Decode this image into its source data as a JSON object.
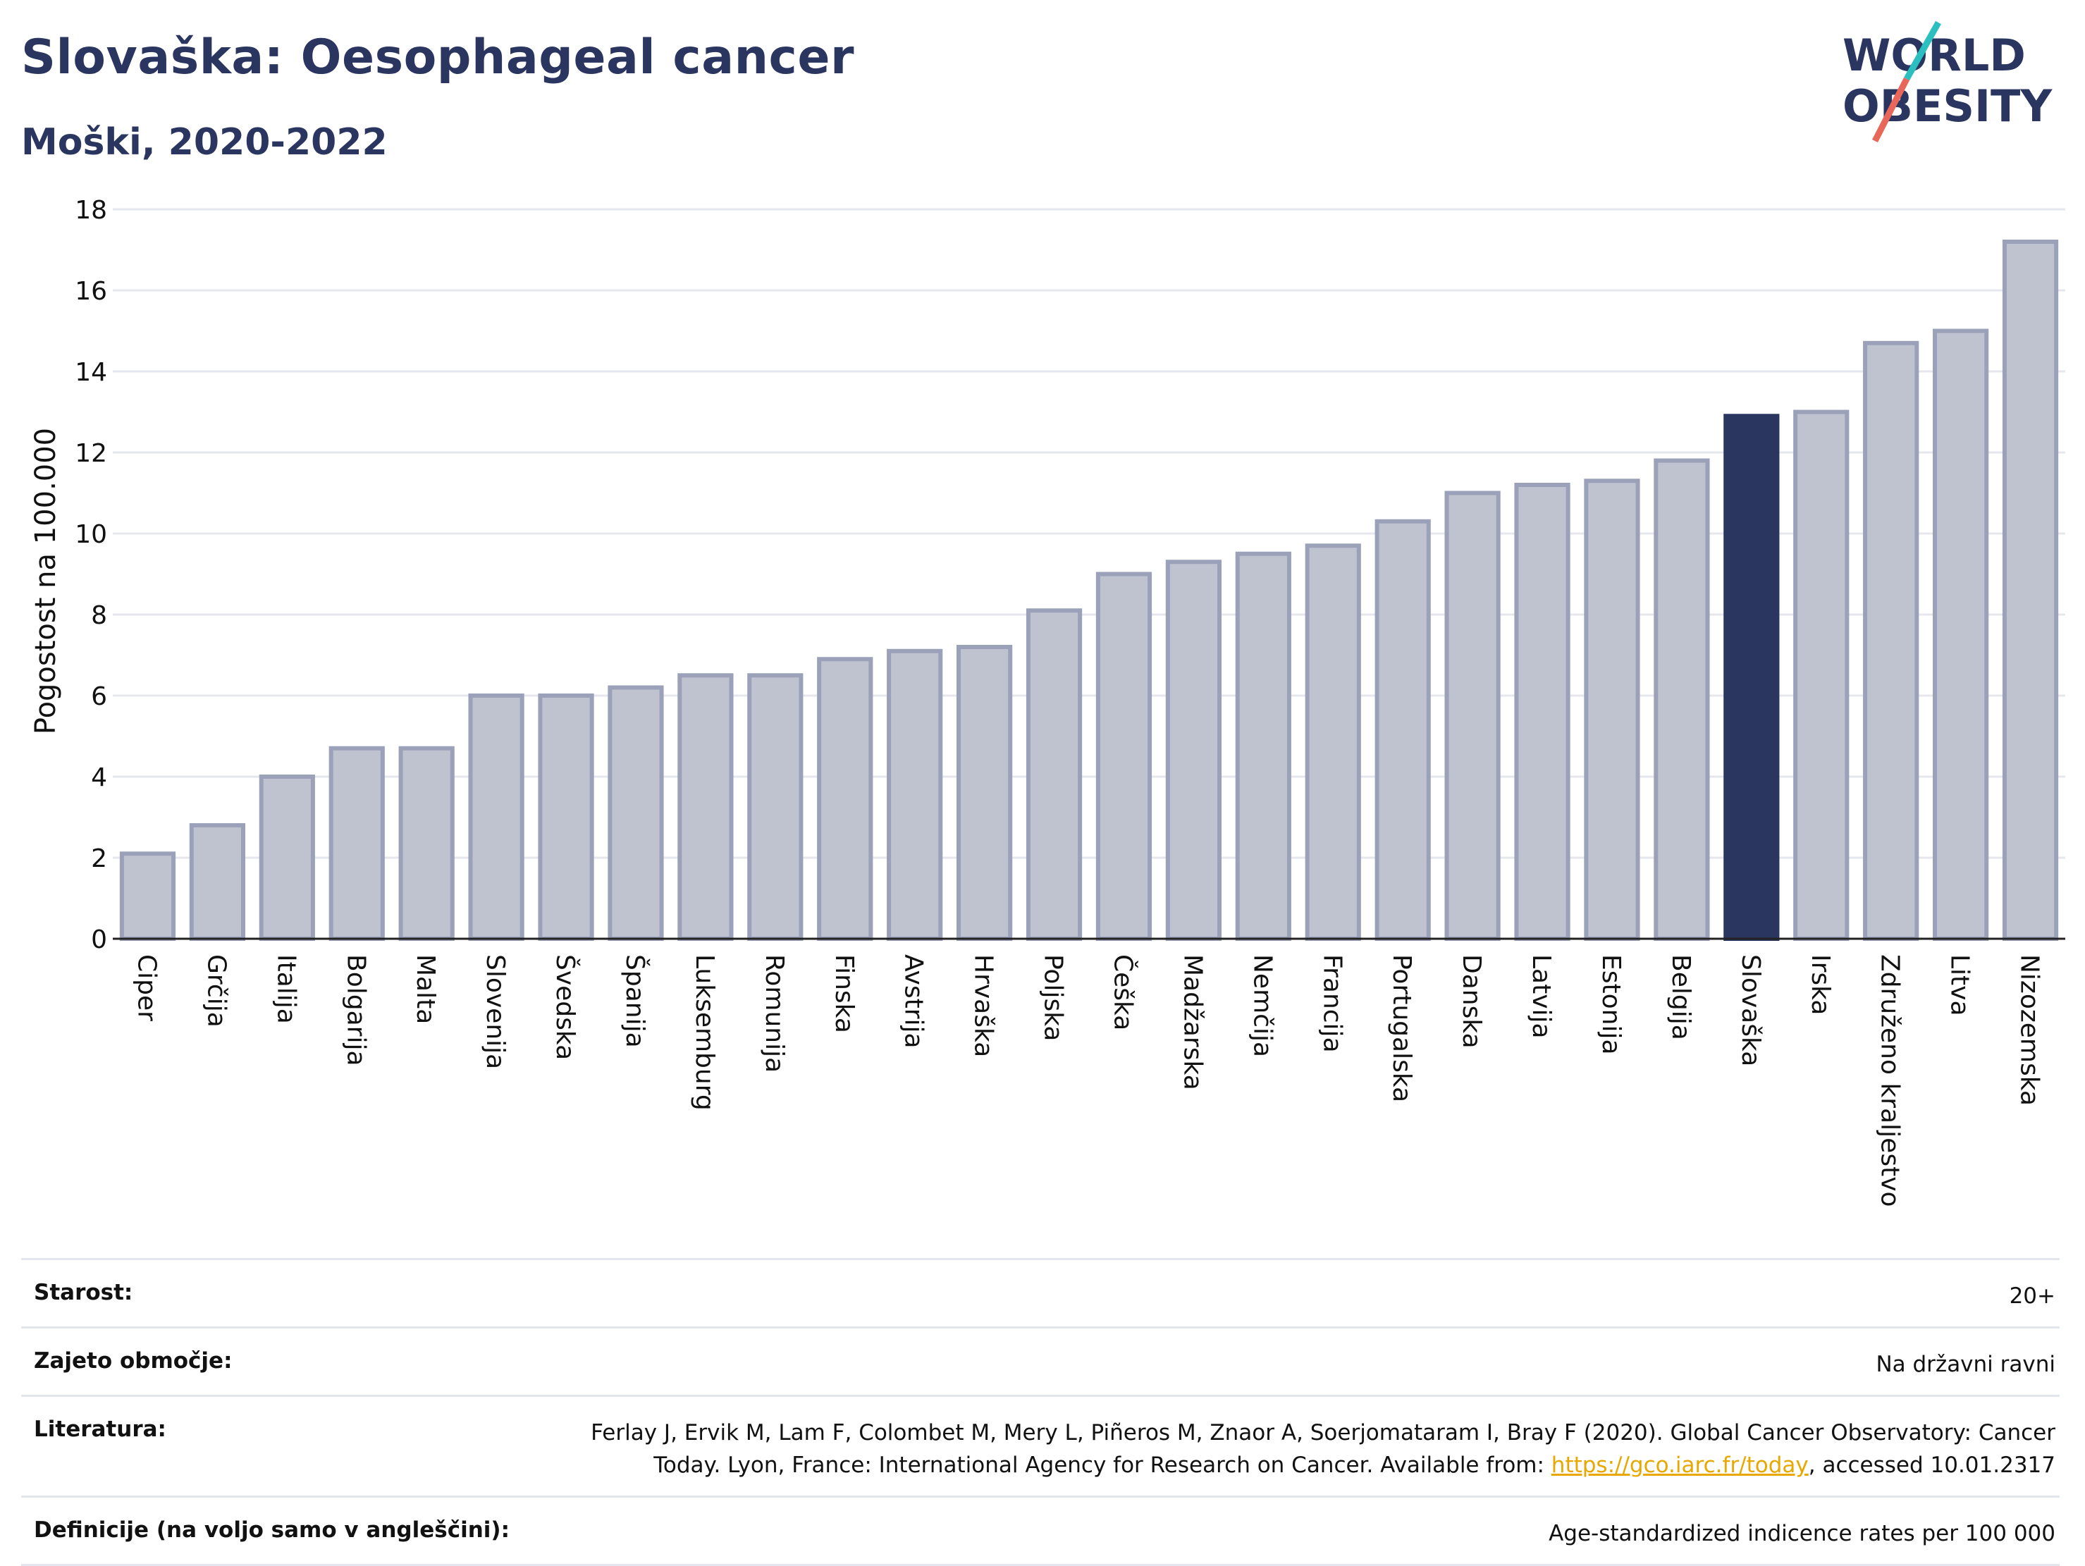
{
  "header": {
    "title": "Slovaška: Oesophageal cancer",
    "subtitle": "Moški, 2020-2022"
  },
  "logo": {
    "line1": "WORLD",
    "line2": "OBESITY",
    "color_text": "#2a3560",
    "color_slash_top": "#2bbfbf",
    "color_slash_bottom": "#e8675a"
  },
  "chart_data": {
    "type": "bar",
    "ylabel": "Pogostost na 100.000",
    "xlabel": "",
    "ylim": [
      0,
      18
    ],
    "yticks": [
      0,
      2,
      4,
      6,
      8,
      10,
      12,
      14,
      16,
      18
    ],
    "grid": true,
    "highlight": "Slovaška",
    "colors": {
      "bar": "#bfc3d0",
      "bar_edge": "#9aa1b9",
      "highlight": "#2a3560"
    },
    "categories": [
      "Ciper",
      "Grčija",
      "Italija",
      "Bolgarija",
      "Malta",
      "Slovenija",
      "Švedska",
      "Španija",
      "Luksemburg",
      "Romunija",
      "Finska",
      "Avstrija",
      "Hrvaška",
      "Poljska",
      "Češka",
      "Madžarska",
      "Nemčija",
      "Francija",
      "Portugalska",
      "Danska",
      "Latvija",
      "Estonija",
      "Belgija",
      "Slovaška",
      "Irska",
      "Združeno kraljestvo",
      "Litva",
      "Nizozemska"
    ],
    "values": [
      2.1,
      2.8,
      4.0,
      4.7,
      4.7,
      6.0,
      6.0,
      6.2,
      6.5,
      6.5,
      6.9,
      7.1,
      7.2,
      8.1,
      9.0,
      9.3,
      9.5,
      9.7,
      10.3,
      11.0,
      11.2,
      11.3,
      11.8,
      12.9,
      13.0,
      14.7,
      15.0,
      17.2
    ]
  },
  "meta": [
    {
      "label": "Starost:",
      "value": "20+"
    },
    {
      "label": "Zajeto območje:",
      "value": "Na državni ravni"
    },
    {
      "label": "Literatura:",
      "value_before": "Ferlay J, Ervik M, Lam F, Colombet M, Mery L, Piñeros M, Znaor A, Soerjomataram I, Bray F (2020). Global Cancer Observatory: Cancer Today. Lyon, France: International Agency for Research on Cancer. Available from: ",
      "link": "https://gco.iarc.fr/today",
      "value_after": ", accessed 10.01.2317"
    },
    {
      "label": "Definicije (na voljo samo v angleščini):",
      "value": "Age-standardized indicence rates per 100 000"
    }
  ]
}
